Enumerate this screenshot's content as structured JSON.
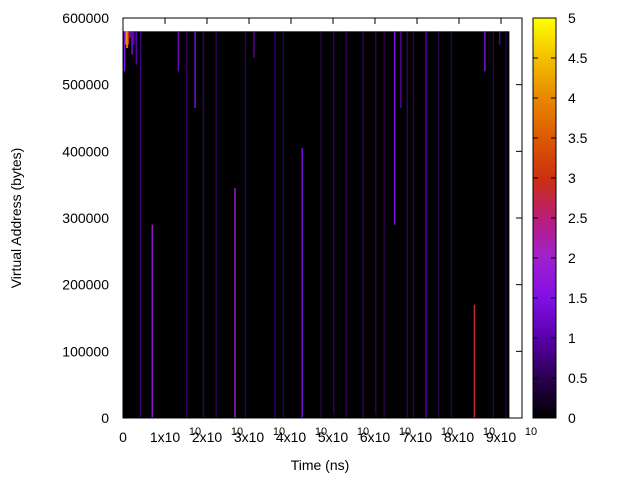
{
  "chart_data": {
    "type": "heatmap",
    "title": "",
    "xlabel": "Time (ns)",
    "ylabel": "Virtual Address (bytes)",
    "xlim": [
      0,
      95000000000
    ],
    "ylim": [
      0,
      600000
    ],
    "data_extent": {
      "x": [
        0,
        92000000000
      ],
      "y": [
        0,
        580000
      ]
    },
    "background_value": 0,
    "x_ticks": [
      {
        "value": 0,
        "label": "0",
        "exp": ""
      },
      {
        "value": 10000000000,
        "label": "1x10",
        "exp": "10"
      },
      {
        "value": 20000000000,
        "label": "2x10",
        "exp": "10"
      },
      {
        "value": 30000000000,
        "label": "3x10",
        "exp": "10"
      },
      {
        "value": 40000000000,
        "label": "4x10",
        "exp": "10"
      },
      {
        "value": 50000000000,
        "label": "5x10",
        "exp": "10"
      },
      {
        "value": 60000000000,
        "label": "6x10",
        "exp": "10"
      },
      {
        "value": 70000000000,
        "label": "7x10",
        "exp": "10"
      },
      {
        "value": 80000000000,
        "label": "8x10",
        "exp": "10"
      },
      {
        "value": 90000000000,
        "label": "9x10",
        "exp": "10"
      }
    ],
    "y_ticks": [
      {
        "value": 0,
        "label": "0"
      },
      {
        "value": 100000,
        "label": "100000"
      },
      {
        "value": 200000,
        "label": "200000"
      },
      {
        "value": 300000,
        "label": "300000"
      },
      {
        "value": 400000,
        "label": "400000"
      },
      {
        "value": 500000,
        "label": "500000"
      },
      {
        "value": 600000,
        "label": "600000"
      }
    ],
    "colorbar": {
      "min": 0,
      "max": 5,
      "ticks": [
        {
          "value": 0,
          "label": "0"
        },
        {
          "value": 0.5,
          "label": "0.5"
        },
        {
          "value": 1,
          "label": "1"
        },
        {
          "value": 1.5,
          "label": "1.5"
        },
        {
          "value": 2,
          "label": "2"
        },
        {
          "value": 2.5,
          "label": "2.5"
        },
        {
          "value": 3,
          "label": "3"
        },
        {
          "value": 3.5,
          "label": "3.5"
        },
        {
          "value": 4,
          "label": "4"
        },
        {
          "value": 4.5,
          "label": "4.5"
        },
        {
          "value": 5,
          "label": "5"
        }
      ]
    },
    "grid": false,
    "accesses": [
      {
        "t": 200000000,
        "a0": 520000,
        "a1": 580000,
        "v": 1.5
      },
      {
        "t": 500000000,
        "a0": 560000,
        "a1": 580000,
        "v": 3.5
      },
      {
        "t": 800000000,
        "a0": 555000,
        "a1": 580000,
        "v": 4.5
      },
      {
        "t": 1100000000,
        "a0": 560000,
        "a1": 580000,
        "v": 3.0
      },
      {
        "t": 1500000000,
        "a0": 570000,
        "a1": 580000,
        "v": 1.5
      },
      {
        "t": 2000000000,
        "a0": 545000,
        "a1": 580000,
        "v": 1.5
      },
      {
        "t": 2400000000,
        "a0": 560000,
        "a1": 580000,
        "v": 1.0
      },
      {
        "t": 3000000000,
        "a0": 530000,
        "a1": 580000,
        "v": 1.0
      },
      {
        "t": 4000000000,
        "a0": 0,
        "a1": 580000,
        "v": 0.7
      },
      {
        "t": 6800000000,
        "a0": 0,
        "a1": 290000,
        "v": 1.8
      },
      {
        "t": 13000000000,
        "a0": 520000,
        "a1": 580000,
        "v": 1.2
      },
      {
        "t": 15000000000,
        "a0": 0,
        "a1": 580000,
        "v": 0.6
      },
      {
        "t": 17000000000,
        "a0": 465000,
        "a1": 580000,
        "v": 1.5
      },
      {
        "t": 19000000000,
        "a0": 0,
        "a1": 580000,
        "v": 0.6
      },
      {
        "t": 22000000000,
        "a0": 0,
        "a1": 580000,
        "v": 0.6
      },
      {
        "t": 26500000000,
        "a0": 0,
        "a1": 345000,
        "v": 2.0
      },
      {
        "t": 29000000000,
        "a0": 0,
        "a1": 580000,
        "v": 0.5
      },
      {
        "t": 31000000000,
        "a0": 540000,
        "a1": 580000,
        "v": 1.0
      },
      {
        "t": 36000000000,
        "a0": 0,
        "a1": 580000,
        "v": 0.6
      },
      {
        "t": 38000000000,
        "a0": 0,
        "a1": 580000,
        "v": 0.5
      },
      {
        "t": 42500000000,
        "a0": 0,
        "a1": 405000,
        "v": 1.5
      },
      {
        "t": 47000000000,
        "a0": 0,
        "a1": 580000,
        "v": 0.5
      },
      {
        "t": 50000000000,
        "a0": 0,
        "a1": 580000,
        "v": 0.6
      },
      {
        "t": 53000000000,
        "a0": 0,
        "a1": 580000,
        "v": 0.5
      },
      {
        "t": 57000000000,
        "a0": 0,
        "a1": 580000,
        "v": 0.6
      },
      {
        "t": 60000000000,
        "a0": 0,
        "a1": 580000,
        "v": 0.6
      },
      {
        "t": 62000000000,
        "a0": 0,
        "a1": 580000,
        "v": 0.5
      },
      {
        "t": 64500000000,
        "a0": 290000,
        "a1": 580000,
        "v": 1.5
      },
      {
        "t": 66000000000,
        "a0": 465000,
        "a1": 580000,
        "v": 1.0
      },
      {
        "t": 67500000000,
        "a0": 0,
        "a1": 580000,
        "v": 0.6
      },
      {
        "t": 69000000000,
        "a0": 0,
        "a1": 580000,
        "v": 0.5
      },
      {
        "t": 72000000000,
        "a0": 0,
        "a1": 580000,
        "v": 1.0
      },
      {
        "t": 75000000000,
        "a0": 0,
        "a1": 580000,
        "v": 0.5
      },
      {
        "t": 78000000000,
        "a0": 0,
        "a1": 580000,
        "v": 0.5
      },
      {
        "t": 83500000000,
        "a0": 0,
        "a1": 170000,
        "v": 2.8
      },
      {
        "t": 86000000000,
        "a0": 520000,
        "a1": 580000,
        "v": 1.5
      },
      {
        "t": 88000000000,
        "a0": 0,
        "a1": 580000,
        "v": 0.5
      },
      {
        "t": 89500000000,
        "a0": 560000,
        "a1": 580000,
        "v": 1.0
      },
      {
        "t": 91000000000,
        "a0": 0,
        "a1": 580000,
        "v": 0.5
      }
    ]
  }
}
